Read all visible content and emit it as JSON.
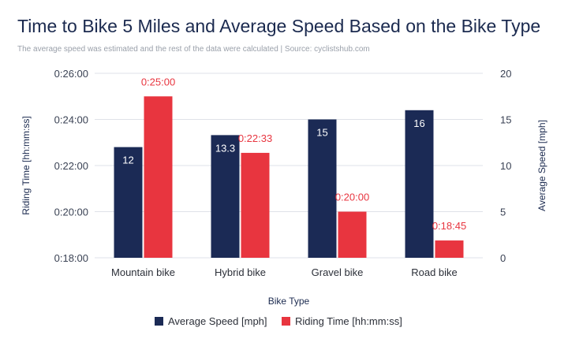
{
  "title": "Time to Bike 5 Miles and Average Speed Based on the Bike Type",
  "subtitle": "The average speed was estimated and the rest of the data were calculated | Source: cyclistshub.com",
  "colors": {
    "speed": "#1b2a55",
    "time": "#e8353f",
    "grid": "#dfe2e8"
  },
  "chart_data": {
    "type": "bar",
    "categories": [
      "Mountain bike",
      "Hybrid bike",
      "Gravel bike",
      "Road bike"
    ],
    "series": [
      {
        "name": "Average Speed [mph]",
        "axis": "right",
        "values": [
          12,
          13.3,
          15,
          16
        ],
        "labels": [
          "12",
          "13.3",
          "15",
          "16"
        ]
      },
      {
        "name": "Riding Time [hh:mm:ss]",
        "axis": "left",
        "values": [
          "0:25:00",
          "0:22:33",
          "0:20:00",
          "0:18:45"
        ],
        "labels": [
          "0:25:00",
          "0:22:33",
          "0:20:00",
          "0:18:45"
        ]
      }
    ],
    "xlabel": "Bike Type",
    "ylabel_left": "Riding Time [hh:mm:ss]",
    "ylabel_right": "Average Speed [mph]",
    "ylim_left": [
      "0:18:00",
      "0:26:00"
    ],
    "yticks_left": [
      "0:18:00",
      "0:20:00",
      "0:22:00",
      "0:24:00",
      "0:26:00"
    ],
    "ylim_right": [
      0,
      20
    ],
    "yticks_right": [
      "0",
      "5",
      "10",
      "15",
      "20"
    ],
    "grid": true,
    "legend": "bottom"
  }
}
